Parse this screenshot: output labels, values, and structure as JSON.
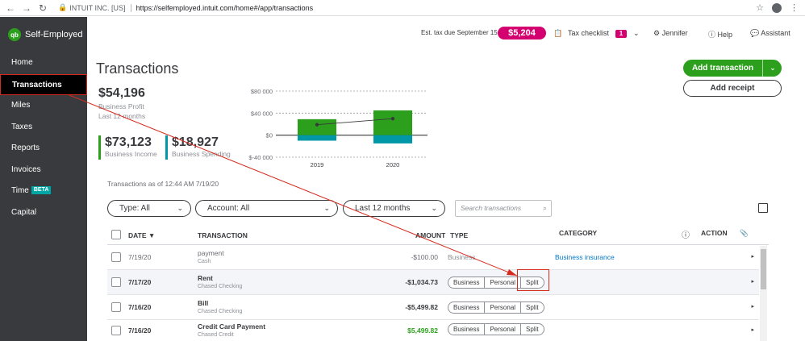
{
  "browser": {
    "site": "INTUIT INC. [US]",
    "url": "https://selfemployed.intuit.com/home#/app/transactions"
  },
  "brand": {
    "logo": "qb",
    "name": "Self-Employed"
  },
  "sidebar": {
    "items": [
      {
        "label": "Home"
      },
      {
        "label": "Transactions",
        "active": true
      },
      {
        "label": "Miles"
      },
      {
        "label": "Taxes"
      },
      {
        "label": "Reports"
      },
      {
        "label": "Invoices"
      },
      {
        "label": "Time",
        "badge": "BETA"
      },
      {
        "label": "Capital"
      }
    ]
  },
  "header": {
    "tax_due_label": "Est. tax due September 15:",
    "tax_due_amount": "$5,204",
    "checklist_label": "Tax checklist",
    "checklist_count": "1",
    "user": "Jennifer",
    "help": "Help",
    "assistant": "Assistant"
  },
  "page": {
    "title": "Transactions",
    "add_transaction": "Add transaction",
    "add_receipt": "Add receipt"
  },
  "summary": {
    "profit_value": "$54,196",
    "profit_label": "Business Profit",
    "profit_period": "Last 12 months",
    "income_value": "$73,123",
    "income_label": "Business Income",
    "spending_value": "$18,927",
    "spending_label": "Business Spending"
  },
  "chart_data": {
    "type": "bar",
    "categories": [
      "2019",
      "2020"
    ],
    "series": [
      {
        "name": "Business Income",
        "values": [
          29000,
          45000
        ],
        "color": "#2ca01c"
      },
      {
        "name": "Business Spending",
        "values": [
          -10000,
          -15000
        ],
        "color": "#0097a7"
      },
      {
        "name": "Business Profit",
        "values": [
          19000,
          30000
        ],
        "color": "#393a3d",
        "kind": "line"
      }
    ],
    "y_ticks": [
      "$80 000",
      "$40 000",
      "$0",
      "$-40 000"
    ],
    "y_tick_values": [
      80000,
      40000,
      0,
      -40000
    ],
    "ylim": [
      -40000,
      80000
    ],
    "grid": true
  },
  "filters": {
    "as_of": "Transactions as of 12:44 AM 7/19/20",
    "type": "Type: All",
    "account": "Account: All",
    "period": "Last 12 months",
    "search_placeholder": "Search transactions"
  },
  "table": {
    "headers": {
      "date": "DATE ▼",
      "transaction": "TRANSACTION",
      "amount": "AMOUNT",
      "type": "TYPE",
      "category": "CATEGORY",
      "action": "ACTION"
    },
    "type_options": [
      "Business",
      "Personal",
      "Split"
    ],
    "rows": [
      {
        "date": "7/19/20",
        "name": "payment",
        "account": "Cash",
        "amount": "-$100.00",
        "type": "Business",
        "category": "Business insurance",
        "reviewed": true
      },
      {
        "date": "7/17/20",
        "name": "Rent",
        "account": "Chased Checking",
        "amount": "-$1,034.73"
      },
      {
        "date": "7/16/20",
        "name": "Bill",
        "account": "Chased Checking",
        "amount": "-$5,499.82"
      },
      {
        "date": "7/16/20",
        "name": "Credit Card Payment",
        "account": "Chased Credit",
        "amount": "$5,499.82",
        "positive": true
      }
    ]
  },
  "colors": {
    "accent_green": "#2ca01c",
    "accent_teal": "#0097a7",
    "magenta": "#d4006f",
    "annotation_red": "#d52b1e",
    "sidebar_bg": "#393a3d"
  }
}
